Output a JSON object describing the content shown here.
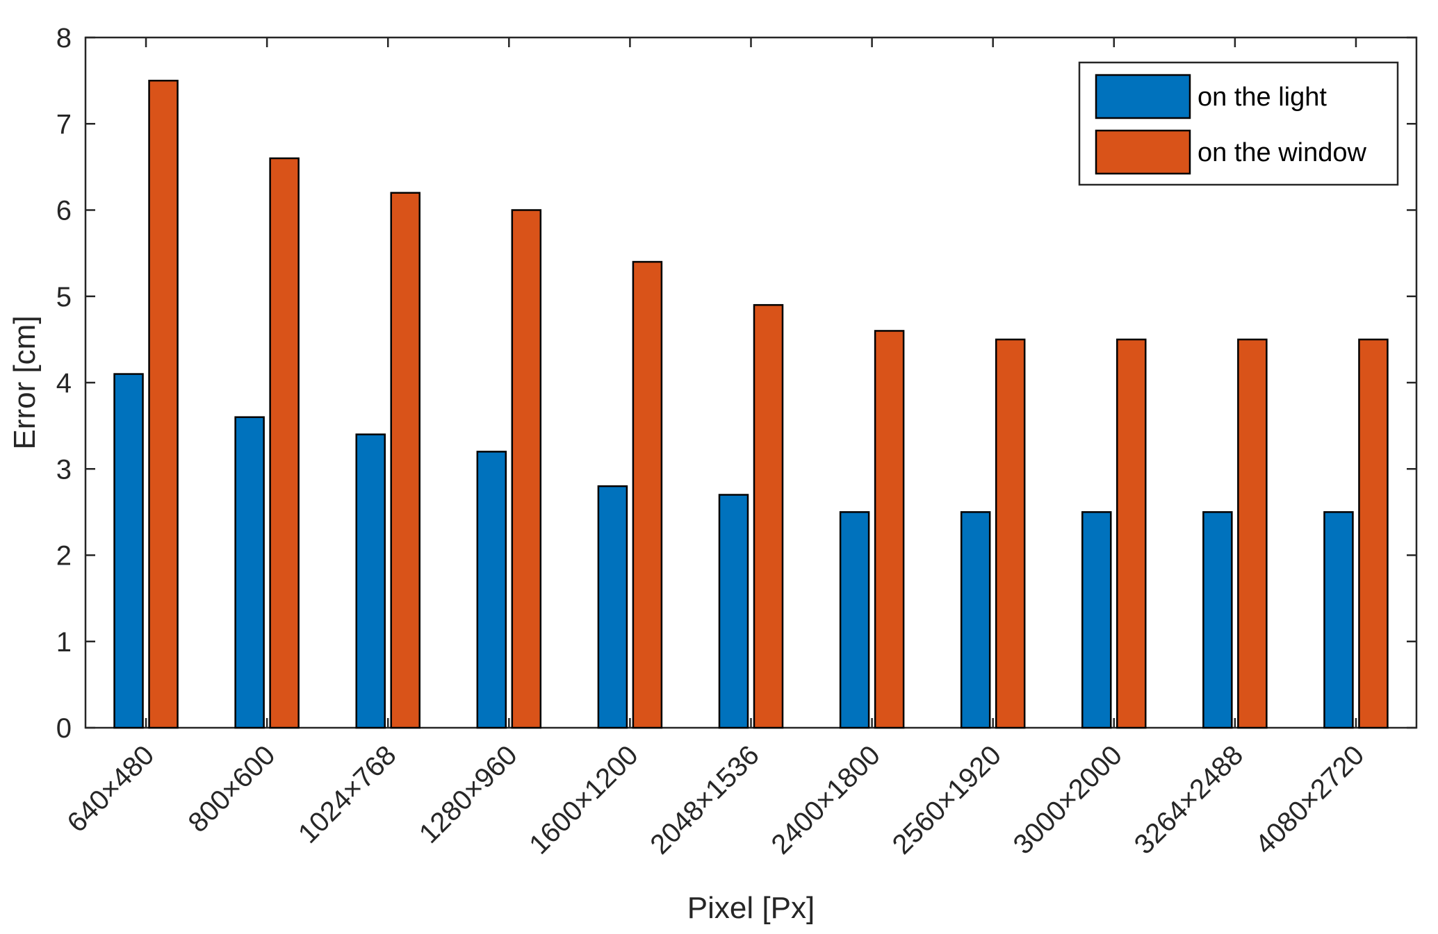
{
  "chart_data": {
    "type": "bar",
    "title": "",
    "xlabel": "Pixel [Px]",
    "ylabel": "Error [cm]",
    "ylim": [
      0,
      8
    ],
    "yticks": [
      0,
      1,
      2,
      3,
      4,
      5,
      6,
      7,
      8
    ],
    "categories": [
      "640×480",
      "800×600",
      "1024×768",
      "1280×960",
      "1600×1200",
      "2048×1536",
      "2400×1800",
      "2560×1920",
      "3000×2000",
      "3264×2488",
      "4080×2720"
    ],
    "series": [
      {
        "name": "on the light",
        "color": "#0072BD",
        "values": [
          4.1,
          3.6,
          3.4,
          3.2,
          2.8,
          2.7,
          2.5,
          2.5,
          2.5,
          2.5,
          2.5
        ]
      },
      {
        "name": "on the window",
        "color": "#D95319",
        "values": [
          7.5,
          6.6,
          6.2,
          6.0,
          5.4,
          4.9,
          4.6,
          4.5,
          4.5,
          4.5,
          4.5
        ]
      }
    ],
    "legend_position": "top-right",
    "grid": false
  }
}
